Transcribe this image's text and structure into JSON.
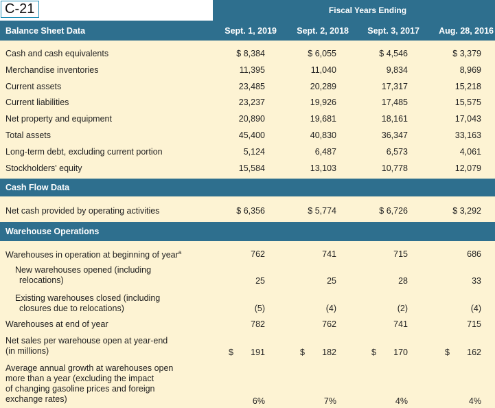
{
  "tag": "C-21",
  "fiscal_heading": "Fiscal Years Ending",
  "sections": {
    "balance": "Balance Sheet Data",
    "cashflow": "Cash Flow Data",
    "warehouse": "Warehouse Operations"
  },
  "columns": [
    "Sept. 1, 2019",
    "Sept. 2, 2018",
    "Sept. 3, 2017",
    "Aug. 28, 2016"
  ],
  "balance_rows": [
    {
      "label": "Cash and cash equivalents",
      "values": [
        "$ 8,384",
        "$ 6,055",
        "$ 4,546",
        "$ 3,379"
      ]
    },
    {
      "label": "Merchandise inventories",
      "values": [
        "11,395",
        "11,040",
        "9,834",
        "8,969"
      ]
    },
    {
      "label": "Current assets",
      "values": [
        "23,485",
        "20,289",
        "17,317",
        "15,218"
      ]
    },
    {
      "label": "Current liabilities",
      "values": [
        "23,237",
        "19,926",
        "17,485",
        "15,575"
      ]
    },
    {
      "label": "Net property and equipment",
      "values": [
        "20,890",
        "19,681",
        "18,161",
        "17,043"
      ]
    },
    {
      "label": "Total assets",
      "values": [
        "45,400",
        "40,830",
        "36,347",
        "33,163"
      ]
    },
    {
      "label": "Long-term debt, excluding current portion",
      "values": [
        "5,124",
        "6,487",
        "6,573",
        "4,061"
      ]
    },
    {
      "label": "Stockholders' equity",
      "values": [
        "15,584",
        "13,103",
        "10,778",
        "12,079"
      ]
    }
  ],
  "cashflow_rows": [
    {
      "label": "Net cash provided by operating activities",
      "values": [
        "$ 6,356",
        "$ 5,774",
        "$ 6,726",
        "$ 3,292"
      ]
    }
  ],
  "warehouse_rows": [
    {
      "label": "Warehouses in operation at beginning of year",
      "sup": "a",
      "values": [
        "762",
        "741",
        "715",
        "686"
      ]
    },
    {
      "label_lines": [
        "New warehouses opened (including",
        "relocations)"
      ],
      "values": [
        "25",
        "25",
        "28",
        "33"
      ]
    },
    {
      "label_lines": [
        "Existing warehouses closed (including",
        "closures due to relocations)"
      ],
      "values": [
        "(5)",
        "(4)",
        "(2)",
        "(4)"
      ]
    },
    {
      "label": "Warehouses at end of year",
      "values": [
        "782",
        "762",
        "741",
        "715"
      ]
    },
    {
      "label_lines": [
        "Net sales per warehouse open at year-end",
        "(in millions)"
      ],
      "currency": "$",
      "values": [
        "191",
        "182",
        "170",
        "162"
      ]
    },
    {
      "label_lines": [
        "Average annual growth at warehouses open",
        "more than a year (excluding the impact",
        "of changing gasoline prices and foreign",
        "exchange rates)"
      ],
      "values": [
        "6%",
        "7%",
        "4%",
        "4%"
      ]
    }
  ]
}
